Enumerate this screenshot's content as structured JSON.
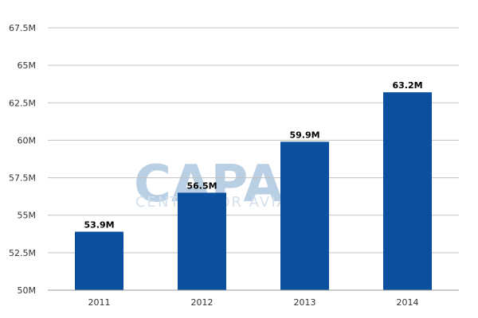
{
  "watermark": {
    "logo": "CAPA",
    "subtitle": "CENTRE FOR AVIATION"
  },
  "colors": {
    "bar": "#0a509e",
    "grid": "#c0c0c0",
    "watermark": "#b9cfe3"
  },
  "chart_data": {
    "type": "bar",
    "categories": [
      "2011",
      "2012",
      "2013",
      "2014"
    ],
    "values": [
      53.9,
      56.5,
      59.9,
      63.2
    ],
    "data_labels": [
      "53.9M",
      "56.5M",
      "59.9M",
      "63.2M"
    ],
    "y_ticks": [
      50,
      52.5,
      55,
      57.5,
      60,
      62.5,
      65,
      67.5
    ],
    "y_tick_labels": [
      "50M",
      "52.5M",
      "55M",
      "57.5M",
      "60M",
      "62.5M",
      "65M",
      "67.5M"
    ],
    "ylim": [
      50,
      67.5
    ],
    "grid": true,
    "legend": "none"
  }
}
